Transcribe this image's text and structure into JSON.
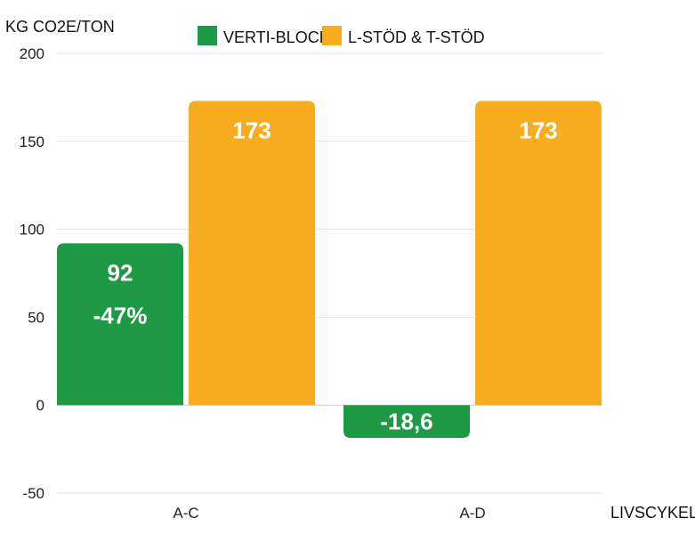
{
  "chart_data": {
    "type": "bar",
    "ylabel": "KG CO2E/TON",
    "xlabel": "LIVSCYKEL",
    "categories": [
      "A-C",
      "A-D"
    ],
    "ylim": [
      -50,
      200
    ],
    "yticks": [
      200,
      150,
      100,
      50,
      0,
      -50
    ],
    "grid": true,
    "legend_position": "top",
    "series": [
      {
        "name": "VERTI-BLOCK",
        "color": "#1e9a47",
        "values": [
          92,
          -18.6
        ],
        "labels": [
          "92",
          "-18,6"
        ],
        "extra_labels": [
          "-47%",
          ""
        ]
      },
      {
        "name": "L-STÖD & T-STÖD",
        "color": "#f8ac1f",
        "values": [
          173,
          173
        ],
        "labels": [
          "173",
          "173"
        ]
      }
    ]
  }
}
